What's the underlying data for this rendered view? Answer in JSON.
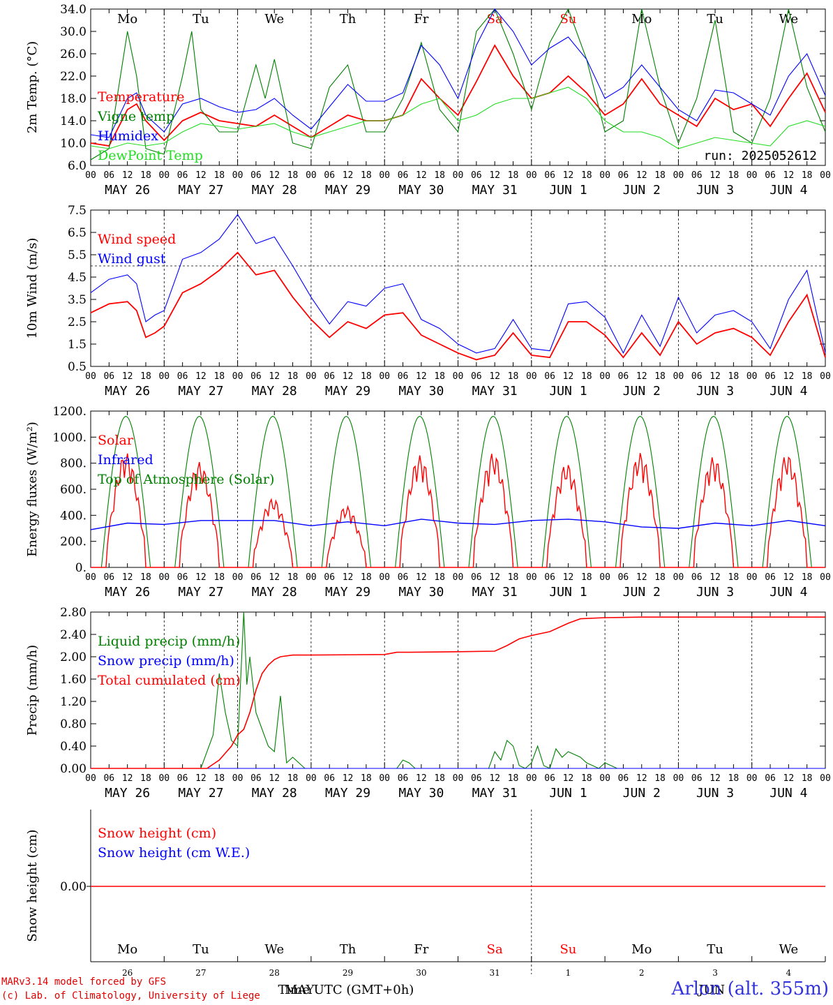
{
  "station": "Arlon (alt. 355m)",
  "credits": [
    "MARv3.14 model forced by GFS",
    "(c) Lab. of Climatology, University of Liege"
  ],
  "run_label": "run: 2025052612",
  "xaxis": {
    "hour_labels": [
      "00",
      "06",
      "12",
      "18"
    ],
    "final_hour_label": "00",
    "day_labels": [
      "MAY 26",
      "MAY 27",
      "MAY 28",
      "MAY 29",
      "MAY 30",
      "MAY 31",
      "JUN  1",
      "JUN  2",
      "JUN  3",
      "JUN  4"
    ],
    "weekdays": [
      "Mo",
      "Tu",
      "We",
      "Th",
      "Fr",
      "Sa",
      "Su",
      "Mo",
      "Tu",
      "We"
    ],
    "weekend_indices": [
      5,
      6
    ],
    "bottom_day_numbers": [
      "26",
      "27",
      "28",
      "29",
      "30",
      "31",
      "1",
      "2",
      "3",
      "4"
    ],
    "bottom_month_may": "MAY",
    "bottom_month_jun": "JUN",
    "bottom_xlabel": "Time UTC (GMT+0h)"
  },
  "colors": {
    "red": "#ff0000",
    "green": "#008000",
    "blue": "#0000ff",
    "lightgreen": "#22dd22",
    "weekend": "#ff0000"
  },
  "chart_data": [
    {
      "type": "line",
      "ylabel": "2m Temp. (°C)",
      "ylim": [
        6,
        34
      ],
      "yticks": [
        "6.0",
        "10.0",
        "14.0",
        "18.0",
        "22.0",
        "26.0",
        "30.0",
        "34.0"
      ],
      "x_unit": "hours since 2025-05-26 00 UTC",
      "series": [
        {
          "name": "Temperature",
          "color": "red",
          "x": [
            0,
            6,
            12,
            15,
            18,
            24,
            30,
            36,
            42,
            48,
            54,
            60,
            66,
            72,
            78,
            84,
            90,
            96,
            102,
            108,
            114,
            120,
            126,
            132,
            138,
            144,
            150,
            156,
            162,
            168,
            174,
            180,
            186,
            192,
            198,
            204,
            210,
            216,
            222,
            228,
            234,
            240
          ],
          "y": [
            10,
            9.5,
            16,
            17,
            14,
            10.5,
            14,
            15.5,
            14,
            13.5,
            13,
            15,
            13,
            11,
            13,
            15,
            14,
            14,
            15,
            21.5,
            18,
            15,
            21,
            27.5,
            22,
            18,
            19,
            22,
            19,
            15,
            17,
            21.5,
            17,
            15,
            13,
            18,
            16,
            17,
            13,
            18,
            22.5,
            15.5
          ]
        },
        {
          "name": "Vigne temp",
          "color": "green",
          "x": [
            0,
            6,
            12,
            15,
            18,
            24,
            30,
            33,
            36,
            42,
            48,
            54,
            57,
            60,
            66,
            72,
            78,
            84,
            90,
            96,
            102,
            108,
            114,
            120,
            126,
            132,
            138,
            144,
            150,
            156,
            162,
            168,
            174,
            180,
            186,
            192,
            198,
            204,
            210,
            216,
            222,
            228,
            234,
            240
          ],
          "y": [
            7,
            9,
            30,
            22,
            9,
            8,
            22,
            30,
            16,
            12,
            12,
            24,
            18,
            25,
            10,
            9,
            20,
            24,
            12,
            12,
            18,
            28,
            16,
            12,
            30,
            34,
            26,
            16,
            28,
            34,
            25,
            12,
            14,
            34,
            20,
            10,
            18,
            32,
            12,
            10,
            18,
            34,
            20,
            12
          ]
        },
        {
          "name": "Humidex",
          "color": "blue",
          "x": [
            0,
            6,
            12,
            15,
            18,
            24,
            30,
            36,
            42,
            48,
            54,
            60,
            66,
            72,
            78,
            84,
            90,
            96,
            102,
            108,
            114,
            120,
            126,
            132,
            138,
            144,
            150,
            156,
            162,
            168,
            174,
            180,
            186,
            192,
            198,
            204,
            210,
            216,
            222,
            228,
            234,
            240
          ],
          "y": [
            11.5,
            11,
            18,
            19,
            15,
            12,
            17,
            18,
            16.5,
            15.5,
            16,
            18,
            15,
            12.5,
            16.5,
            20.5,
            17.5,
            17.5,
            19,
            27.5,
            24,
            18,
            27.5,
            34,
            30,
            24,
            27,
            29,
            25,
            18,
            20,
            24,
            20,
            16,
            14,
            19.5,
            19,
            17,
            15,
            22,
            26,
            18.5
          ]
        },
        {
          "name": "DewPoint Temp",
          "color": "lightgreen",
          "x": [
            0,
            6,
            12,
            18,
            24,
            30,
            36,
            42,
            48,
            54,
            60,
            66,
            72,
            78,
            84,
            90,
            96,
            102,
            108,
            114,
            120,
            126,
            132,
            138,
            144,
            150,
            156,
            162,
            168,
            174,
            180,
            186,
            192,
            198,
            204,
            210,
            216,
            222,
            228,
            234,
            240
          ],
          "y": [
            9.5,
            9,
            10,
            9.5,
            10,
            12,
            13.5,
            13,
            12.5,
            13,
            13.5,
            12,
            11,
            12,
            13,
            14,
            14,
            15,
            17,
            18,
            14,
            15,
            17,
            18,
            18,
            19,
            20,
            18,
            14,
            12,
            12,
            11,
            9,
            10,
            11,
            10.5,
            10,
            9.5,
            13,
            14,
            13
          ]
        }
      ]
    },
    {
      "type": "line",
      "ylabel": "10m Wind (m/s)",
      "ylim": [
        0.5,
        7.5
      ],
      "yticks": [
        "0.5",
        "1.5",
        "2.5",
        "3.5",
        "4.5",
        "5.5",
        "6.5",
        "7.5"
      ],
      "ref_line": 5.0,
      "x_unit": "hours since 2025-05-26 00 UTC",
      "series": [
        {
          "name": "Wind speed",
          "color": "red",
          "x": [
            0,
            6,
            12,
            15,
            18,
            21,
            24,
            30,
            36,
            42,
            48,
            54,
            60,
            66,
            72,
            78,
            84,
            90,
            96,
            102,
            108,
            114,
            120,
            126,
            132,
            138,
            144,
            150,
            156,
            162,
            168,
            174,
            180,
            186,
            192,
            198,
            204,
            210,
            216,
            222,
            228,
            234,
            240
          ],
          "y": [
            2.9,
            3.3,
            3.4,
            3.0,
            1.8,
            2.0,
            2.3,
            3.8,
            4.2,
            4.8,
            5.6,
            4.6,
            4.8,
            3.6,
            2.6,
            1.8,
            2.5,
            2.2,
            2.8,
            2.9,
            1.9,
            1.5,
            1.1,
            0.8,
            1.0,
            2.0,
            1.0,
            0.9,
            2.5,
            2.5,
            1.9,
            0.9,
            2.0,
            1.0,
            2.5,
            1.5,
            2.0,
            2.2,
            1.8,
            1.0,
            2.5,
            3.7,
            0.9
          ]
        },
        {
          "name": "Wind gust",
          "color": "blue",
          "x": [
            0,
            6,
            12,
            15,
            18,
            21,
            24,
            30,
            36,
            42,
            48,
            54,
            60,
            66,
            72,
            78,
            84,
            90,
            96,
            102,
            108,
            114,
            120,
            126,
            132,
            138,
            144,
            150,
            156,
            162,
            168,
            174,
            180,
            186,
            192,
            198,
            204,
            210,
            216,
            222,
            228,
            234,
            240
          ],
          "y": [
            3.8,
            4.4,
            4.6,
            4.2,
            2.5,
            2.8,
            3.0,
            5.3,
            5.6,
            6.2,
            7.3,
            6.0,
            6.3,
            5.0,
            3.6,
            2.4,
            3.4,
            3.2,
            4.0,
            4.2,
            2.6,
            2.2,
            1.5,
            1.1,
            1.3,
            2.6,
            1.3,
            1.2,
            3.3,
            3.4,
            2.7,
            1.1,
            2.8,
            1.4,
            3.6,
            2.0,
            2.8,
            3.0,
            2.5,
            1.3,
            3.5,
            4.8,
            1.1
          ]
        }
      ]
    },
    {
      "type": "line",
      "ylabel": "Energy fluxes (W/m²)",
      "ylim": [
        0,
        1200
      ],
      "yticks": [
        "0.",
        "200.",
        "400.",
        "600.",
        "800.",
        "1000.",
        "1200."
      ],
      "series": [
        {
          "name": "Solar",
          "color": "red",
          "day_peaks": [
            880,
            810,
            530,
            470,
            860,
            880,
            800,
            880,
            850,
            870
          ]
        },
        {
          "name": "Infrared",
          "color": "blue",
          "x": [
            0,
            12,
            24,
            36,
            48,
            60,
            72,
            84,
            96,
            108,
            120,
            132,
            144,
            156,
            168,
            180,
            192,
            204,
            216,
            228,
            240
          ],
          "y": [
            290,
            340,
            330,
            360,
            360,
            360,
            320,
            350,
            320,
            370,
            340,
            330,
            360,
            370,
            350,
            310,
            300,
            340,
            320,
            360,
            320
          ]
        },
        {
          "name": "Top of Atmosphere (Solar)",
          "color": "green",
          "day_peak": 1160,
          "sunrise_hour": 3.5,
          "sunset_hour": 19.5
        }
      ]
    },
    {
      "type": "line",
      "ylabel": "Precip (mm/h)",
      "ylim": [
        0,
        2.8
      ],
      "yticks": [
        "0.00",
        "0.40",
        "0.80",
        "1.20",
        "1.60",
        "2.00",
        "2.40",
        "2.80"
      ],
      "x_unit": "hours since 2025-05-26 00 UTC",
      "series": [
        {
          "name": "Liquid precip (mm/h)",
          "color": "green",
          "x": [
            0,
            36,
            40,
            42,
            44,
            46,
            48,
            50,
            51,
            52,
            54,
            56,
            58,
            60,
            62,
            64,
            66,
            68,
            70,
            72,
            100,
            102,
            104,
            106,
            130,
            132,
            134,
            136,
            138,
            140,
            142,
            144,
            146,
            148,
            150,
            152,
            154,
            156,
            158,
            160,
            162,
            164,
            166,
            168,
            170,
            172,
            240
          ],
          "y": [
            0,
            0,
            0.6,
            1.7,
            1.0,
            0.5,
            0.4,
            2.8,
            1.5,
            2.0,
            1.0,
            0.7,
            0.4,
            0.3,
            1.3,
            0.1,
            0.2,
            0.1,
            0,
            0,
            0,
            0.15,
            0.1,
            0,
            0,
            0.3,
            0.15,
            0.5,
            0.4,
            0.05,
            0,
            0.1,
            0.4,
            0.05,
            0,
            0.35,
            0.2,
            0.3,
            0.25,
            0.2,
            0.1,
            0.05,
            0,
            0.1,
            0.05,
            0,
            0
          ]
        },
        {
          "name": "Snow precip (mm/h)",
          "color": "blue",
          "x": [
            0,
            240
          ],
          "y": [
            0,
            0
          ]
        },
        {
          "name": "Total cumulated (cm)",
          "color": "red",
          "x": [
            0,
            38,
            42,
            46,
            48,
            50,
            52,
            54,
            56,
            58,
            60,
            62,
            66,
            72,
            96,
            100,
            104,
            120,
            132,
            136,
            140,
            144,
            150,
            156,
            160,
            168,
            180,
            240
          ],
          "y": [
            0,
            0,
            0.15,
            0.4,
            0.6,
            0.7,
            1.0,
            1.4,
            1.7,
            1.85,
            1.95,
            2.0,
            2.03,
            2.03,
            2.04,
            2.08,
            2.08,
            2.09,
            2.1,
            2.2,
            2.32,
            2.38,
            2.45,
            2.6,
            2.68,
            2.7,
            2.71,
            2.71
          ]
        }
      ]
    },
    {
      "type": "line",
      "ylabel": "Snow height (cm)",
      "yticks": [
        "0.00"
      ],
      "series": [
        {
          "name": "Snow height (cm)",
          "color": "red",
          "x": [
            0,
            240
          ],
          "y": [
            0,
            0
          ]
        },
        {
          "name": "Snow height (cm W.E.)",
          "color": "blue",
          "x": [
            0,
            240
          ],
          "y": [
            0,
            0
          ]
        }
      ]
    }
  ]
}
